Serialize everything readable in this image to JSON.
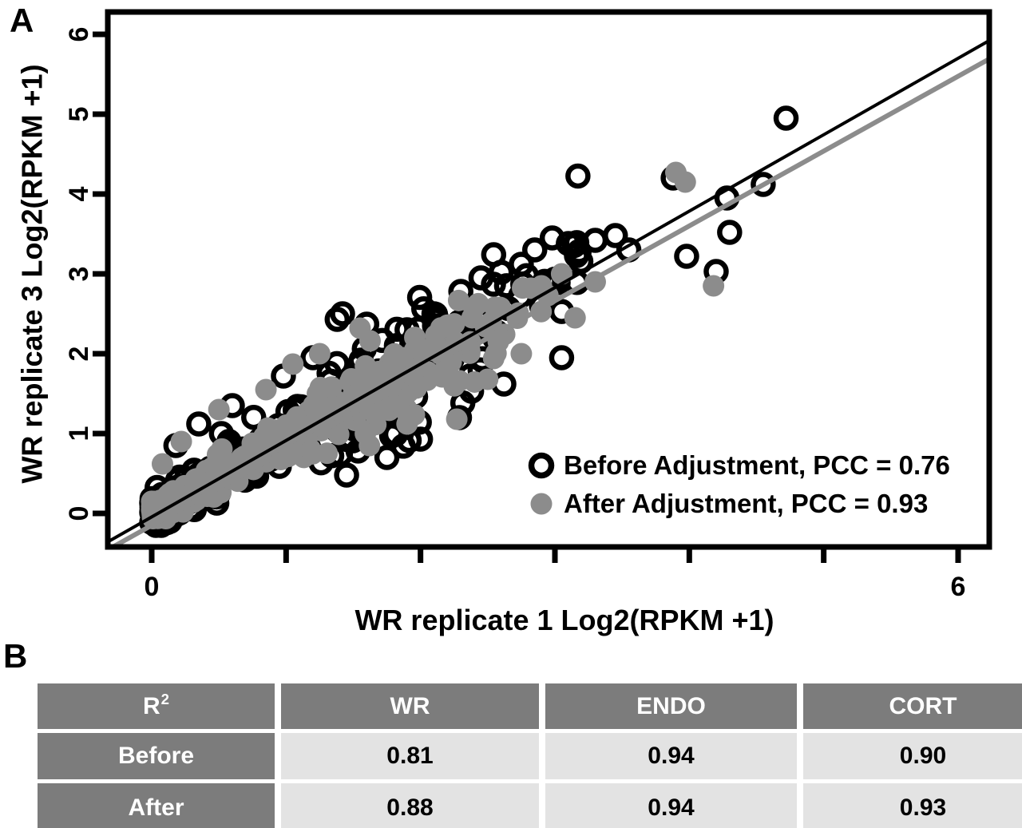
{
  "panels": {
    "a": "A",
    "b": "B"
  },
  "colors": {
    "marker_before": "#000000",
    "marker_after": "#8c8c8c",
    "trend_before": "#000000",
    "trend_after": "#8c8c8c",
    "axis": "#000000",
    "table_header_bg": "#7c7c7c",
    "table_header_text": "#ffffff",
    "table_cell_bg": "#e3e3e3",
    "table_cell_text": "#000000"
  },
  "chart_data": {
    "type": "scatter",
    "title": "",
    "xlabel": "WR replicate 1 Log2(RPKM +1)",
    "ylabel": "WR replicate 3 Log2(RPKM +1)",
    "xlim": [
      -0.35,
      6.25
    ],
    "ylim": [
      -0.3,
      6.3
    ],
    "xticks": [
      0,
      1,
      2,
      3,
      4,
      5,
      6
    ],
    "yticks": [
      0,
      1,
      2,
      3,
      4,
      5,
      6
    ],
    "xtick_labels": [
      "0",
      "",
      "",
      "",
      "",
      "",
      "6"
    ],
    "ytick_labels": [
      "0",
      "1",
      "2",
      "3",
      "4",
      "5",
      "6"
    ],
    "grid": false,
    "legend_position": "bottom-right",
    "seed": 20,
    "series": [
      {
        "name": "Before Adjustment",
        "pcc": "0.76",
        "legend_label": "Before Adjustment, PCC = 0.76",
        "marker": "open-circle",
        "color": "#000000",
        "trendline": {
          "x1": -0.33,
          "y1": -0.36,
          "x2": 6.24,
          "y2": 5.93,
          "width": 4
        },
        "points": [
          [
            4.72,
            4.95
          ],
          [
            4.55,
            4.12
          ],
          [
            4.28,
            3.95
          ],
          [
            4.3,
            3.52
          ],
          [
            3.98,
            3.22
          ],
          [
            4.2,
            3.03
          ],
          [
            3.88,
            4.2
          ],
          [
            3.45,
            3.48
          ],
          [
            3.3,
            3.42
          ],
          [
            3.18,
            3.28
          ],
          [
            2.98,
            3.45
          ],
          [
            3.1,
            3.38
          ],
          [
            2.85,
            3.3
          ],
          [
            3.55,
            3.3
          ],
          [
            2.6,
            3.02
          ],
          [
            2.75,
            3.12
          ],
          [
            2.45,
            2.95
          ],
          [
            2.3,
            2.78
          ],
          [
            2.1,
            2.5
          ],
          [
            1.9,
            2.3
          ],
          [
            1.38,
            2.43
          ],
          [
            1.6,
            2.37
          ],
          [
            1.42,
            2.5
          ],
          [
            1.2,
            1.95
          ],
          [
            0.98,
            1.72
          ],
          [
            0.6,
            1.35
          ],
          [
            0.35,
            1.12
          ],
          [
            0.18,
            0.85
          ],
          [
            1.45,
            0.48
          ],
          [
            1.75,
            0.7
          ],
          [
            2.0,
            0.93
          ],
          [
            2.29,
            1.2
          ],
          [
            2.38,
            1.53
          ],
          [
            2.62,
            1.62
          ],
          [
            3.05,
            1.95
          ],
          [
            2.55,
            2.2
          ],
          [
            2.9,
            2.6
          ]
        ],
        "cloud": [
          {
            "n": 175,
            "xmin": 0,
            "xspan": 2.3,
            "xpow": 1.7,
            "slope": 0.93,
            "sd": 0.33,
            "ymin": -0.15
          },
          {
            "n": 72,
            "xmin": 1.25,
            "xspan": 1.95,
            "xpow": 1.25,
            "slope": 0.95,
            "sd": 0.42,
            "ymin": -0.1
          }
        ]
      },
      {
        "name": "After Adjustment",
        "pcc": "0.93",
        "legend_label": "After Adjustment,  PCC = 0.93",
        "marker": "filled-circle",
        "color": "#8c8c8c",
        "trendline": {
          "x1": -0.31,
          "y1": -0.44,
          "x2": 6.24,
          "y2": 5.7,
          "width": 6
        },
        "points": [
          [
            3.9,
            4.27
          ],
          [
            3.97,
            4.15
          ],
          [
            4.18,
            2.85
          ],
          [
            3.05,
            3.0
          ],
          [
            2.9,
            2.85
          ],
          [
            3.3,
            2.9
          ],
          [
            1.05,
            1.87
          ],
          [
            1.55,
            2.32
          ],
          [
            1.25,
            2.0
          ],
          [
            0.22,
            0.9
          ],
          [
            0.08,
            0.62
          ],
          [
            0.5,
            1.3
          ],
          [
            0.85,
            1.55
          ],
          [
            2.27,
            1.18
          ],
          [
            2.5,
            1.68
          ],
          [
            1.9,
            1.12
          ],
          [
            1.62,
            0.85
          ],
          [
            2.75,
            2.0
          ],
          [
            3.15,
            2.45
          ]
        ],
        "cloud": [
          {
            "n": 240,
            "xmin": 0,
            "xspan": 2.1,
            "xpow": 1.6,
            "slope": 0.94,
            "sd": 0.19,
            "ymin": -0.12
          },
          {
            "n": 78,
            "xmin": 1.15,
            "xspan": 1.85,
            "xpow": 1.2,
            "slope": 0.95,
            "sd": 0.26,
            "ymin": -0.08
          }
        ]
      }
    ]
  },
  "table": {
    "header": {
      "r2_base": "R",
      "r2_sup": "2",
      "cols": [
        "WR",
        "ENDO",
        "CORT"
      ]
    },
    "rows": [
      {
        "label": "Before",
        "values": [
          "0.81",
          "0.94",
          "0.90"
        ]
      },
      {
        "label": "After",
        "values": [
          "0.88",
          "0.94",
          "0.93"
        ]
      }
    ]
  }
}
